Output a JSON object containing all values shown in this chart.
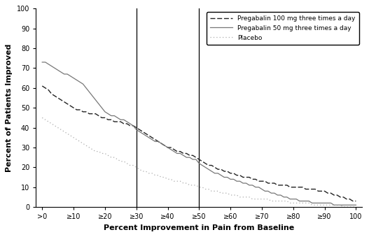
{
  "title": "",
  "xlabel": "Percent Improvement in Pain from Baseline",
  "ylabel": "Percent of Patients Improved",
  "xlim": [
    -2,
    102
  ],
  "ylim": [
    0,
    100
  ],
  "xtick_positions": [
    0,
    10,
    20,
    30,
    40,
    50,
    60,
    70,
    80,
    90,
    100
  ],
  "xtick_labels": [
    ">0",
    "≥10",
    "≥20",
    "≥30",
    "≥40",
    "≥50",
    "≥60",
    "≥70",
    "≥80",
    "≥90",
    "100"
  ],
  "ytick_positions": [
    0,
    10,
    20,
    30,
    40,
    50,
    60,
    70,
    80,
    90,
    100
  ],
  "vline_positions": [
    30,
    50
  ],
  "background_color": "#ffffff",
  "pregabalin100_color": "#222222",
  "pregabalin50_color": "#777777",
  "placebo_color": "#aaaaaa",
  "legend_labels": [
    "Pregabalin 100 mg three times a day",
    "Pregabalin 50 mg three times a day",
    "Placebo"
  ],
  "pregabalin100_x": [
    0,
    1,
    2,
    3,
    4,
    5,
    6,
    7,
    8,
    9,
    10,
    11,
    12,
    13,
    14,
    15,
    16,
    17,
    18,
    19,
    20,
    21,
    22,
    23,
    24,
    25,
    26,
    27,
    28,
    29,
    30,
    31,
    32,
    33,
    34,
    35,
    36,
    37,
    38,
    39,
    40,
    41,
    42,
    43,
    44,
    45,
    46,
    47,
    48,
    49,
    50,
    51,
    52,
    53,
    54,
    55,
    56,
    57,
    58,
    59,
    60,
    61,
    62,
    63,
    64,
    65,
    66,
    67,
    68,
    69,
    70,
    71,
    72,
    73,
    74,
    75,
    76,
    77,
    78,
    79,
    80,
    81,
    82,
    83,
    84,
    85,
    86,
    87,
    88,
    89,
    90,
    91,
    92,
    93,
    94,
    95,
    96,
    97,
    98,
    99,
    100
  ],
  "pregabalin100_y": [
    61,
    60,
    59,
    57,
    56,
    55,
    54,
    53,
    52,
    51,
    50,
    49,
    49,
    48,
    48,
    47,
    47,
    47,
    46,
    45,
    45,
    44,
    44,
    43,
    43,
    43,
    42,
    42,
    41,
    41,
    40,
    39,
    38,
    37,
    36,
    35,
    34,
    33,
    32,
    31,
    30,
    30,
    29,
    28,
    28,
    27,
    27,
    26,
    26,
    25,
    24,
    23,
    22,
    21,
    21,
    20,
    19,
    19,
    18,
    18,
    17,
    17,
    16,
    16,
    15,
    15,
    15,
    14,
    14,
    13,
    13,
    13,
    12,
    12,
    12,
    11,
    11,
    11,
    11,
    10,
    10,
    10,
    10,
    10,
    9,
    9,
    9,
    9,
    8,
    8,
    8,
    7,
    7,
    6,
    6,
    5,
    5,
    4,
    4,
    3,
    3
  ],
  "pregabalin50_x": [
    0,
    1,
    2,
    3,
    4,
    5,
    6,
    7,
    8,
    9,
    10,
    11,
    12,
    13,
    14,
    15,
    16,
    17,
    18,
    19,
    20,
    21,
    22,
    23,
    24,
    25,
    26,
    27,
    28,
    29,
    30,
    31,
    32,
    33,
    34,
    35,
    36,
    37,
    38,
    39,
    40,
    41,
    42,
    43,
    44,
    45,
    46,
    47,
    48,
    49,
    50,
    51,
    52,
    53,
    54,
    55,
    56,
    57,
    58,
    59,
    60,
    61,
    62,
    63,
    64,
    65,
    66,
    67,
    68,
    69,
    70,
    71,
    72,
    73,
    74,
    75,
    76,
    77,
    78,
    79,
    80,
    81,
    82,
    83,
    84,
    85,
    86,
    87,
    88,
    89,
    90,
    91,
    92,
    93,
    94,
    95,
    96,
    97,
    98,
    99,
    100
  ],
  "pregabalin50_y": [
    73,
    73,
    72,
    71,
    70,
    69,
    68,
    67,
    67,
    66,
    65,
    64,
    63,
    62,
    60,
    58,
    56,
    54,
    52,
    50,
    48,
    47,
    46,
    46,
    45,
    44,
    44,
    43,
    42,
    41,
    39,
    38,
    37,
    36,
    35,
    34,
    33,
    33,
    32,
    31,
    30,
    29,
    28,
    27,
    27,
    26,
    25,
    25,
    24,
    24,
    22,
    21,
    20,
    19,
    18,
    17,
    17,
    16,
    15,
    15,
    14,
    14,
    13,
    13,
    12,
    12,
    11,
    11,
    10,
    10,
    9,
    8,
    8,
    7,
    7,
    6,
    6,
    5,
    5,
    4,
    4,
    4,
    3,
    3,
    3,
    3,
    2,
    2,
    2,
    2,
    2,
    2,
    2,
    1,
    1,
    1,
    1,
    1,
    1,
    1,
    1
  ],
  "placebo_x": [
    0,
    1,
    2,
    3,
    4,
    5,
    6,
    7,
    8,
    9,
    10,
    11,
    12,
    13,
    14,
    15,
    16,
    17,
    18,
    19,
    20,
    21,
    22,
    23,
    24,
    25,
    26,
    27,
    28,
    29,
    30,
    31,
    32,
    33,
    34,
    35,
    36,
    37,
    38,
    39,
    40,
    41,
    42,
    43,
    44,
    45,
    46,
    47,
    48,
    49,
    50,
    51,
    52,
    53,
    54,
    55,
    56,
    57,
    58,
    59,
    60,
    61,
    62,
    63,
    64,
    65,
    66,
    67,
    68,
    69,
    70,
    71,
    72,
    73,
    74,
    75,
    76,
    77,
    78,
    79,
    80,
    81,
    82,
    83,
    84,
    85,
    86,
    87,
    88,
    89,
    90,
    91,
    92,
    93,
    94,
    95,
    96,
    97,
    98,
    99,
    100
  ],
  "placebo_y": [
    45,
    44,
    43,
    42,
    41,
    40,
    39,
    38,
    37,
    36,
    35,
    34,
    33,
    32,
    31,
    30,
    29,
    28,
    28,
    27,
    27,
    26,
    25,
    25,
    24,
    23,
    23,
    22,
    21,
    21,
    20,
    19,
    18,
    18,
    17,
    17,
    16,
    16,
    15,
    15,
    14,
    14,
    13,
    13,
    13,
    12,
    12,
    11,
    11,
    11,
    10,
    10,
    9,
    9,
    8,
    8,
    8,
    7,
    7,
    7,
    6,
    6,
    6,
    5,
    5,
    5,
    5,
    4,
    4,
    4,
    4,
    4,
    4,
    3,
    3,
    3,
    3,
    3,
    3,
    2,
    2,
    2,
    2,
    2,
    2,
    2,
    1,
    1,
    1,
    1,
    1,
    1,
    1,
    1,
    1,
    1,
    0,
    0,
    0,
    0,
    0
  ]
}
